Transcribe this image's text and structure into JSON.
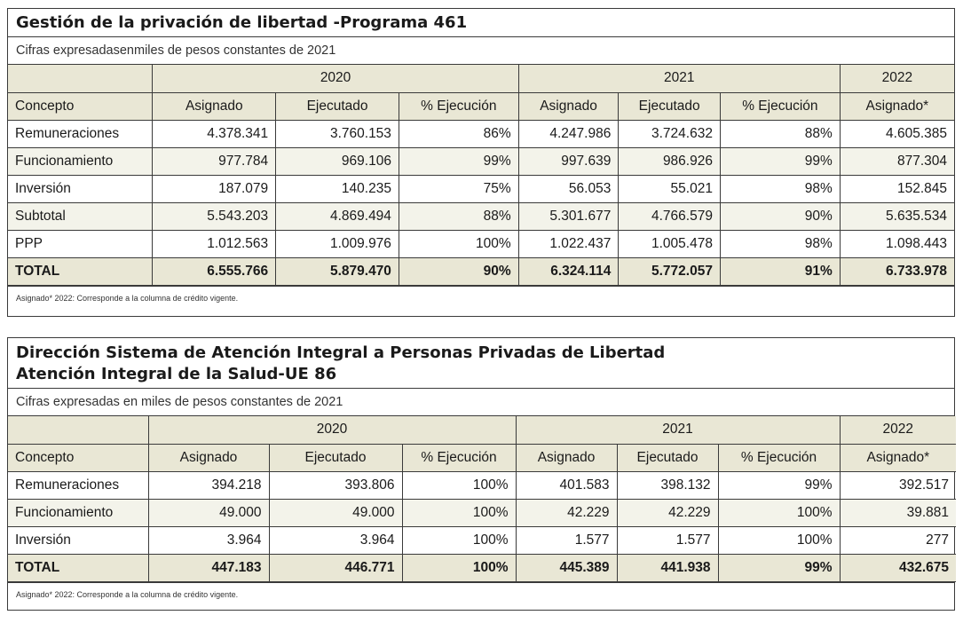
{
  "table1": {
    "title": "Gestión de la privación de libertad -Programa 461",
    "subtitle": "Cifras expresadasenmiles de pesos constantes de 2021",
    "years": [
      "2020",
      "2021",
      "2022"
    ],
    "columns": [
      "Concepto",
      "Asignado",
      "Ejecutado",
      "% Ejecución",
      "Asignado",
      "Ejecutado",
      "% Ejecución",
      "Asignado*"
    ],
    "rows": [
      {
        "label": "Remuneraciones",
        "values": [
          "4.378.341",
          "3.760.153",
          "86%",
          "4.247.986",
          "3.724.632",
          "88%",
          "4.605.385"
        ]
      },
      {
        "label": "Funcionamiento",
        "values": [
          "977.784",
          "969.106",
          "99%",
          "997.639",
          "986.926",
          "99%",
          "877.304"
        ]
      },
      {
        "label": "Inversión",
        "values": [
          "187.079",
          "140.235",
          "75%",
          "56.053",
          "55.021",
          "98%",
          "152.845"
        ]
      },
      {
        "label": "Subtotal",
        "values": [
          "5.543.203",
          "4.869.494",
          "88%",
          "5.301.677",
          "4.766.579",
          "90%",
          "5.635.534"
        ]
      },
      {
        "label": "PPP",
        "values": [
          "1.012.563",
          "1.009.976",
          "100%",
          "1.022.437",
          "1.005.478",
          "98%",
          "1.098.443"
        ]
      },
      {
        "label": "TOTAL",
        "values": [
          "6.555.766",
          "5.879.470",
          "90%",
          "6.324.114",
          "5.772.057",
          "91%",
          "6.733.978"
        ]
      }
    ],
    "note": "Asignado* 2022: Corresponde a la columna de crédito vigente."
  },
  "table2": {
    "title_line1": "Dirección Sistema de Atención Integral a Personas Privadas de Libertad",
    "title_line2": "Atención Integral de la Salud-UE 86",
    "subtitle": "Cifras expresadas en miles de pesos constantes de 2021",
    "years": [
      "2020",
      "2021",
      "2022"
    ],
    "columns": [
      "Concepto",
      "Asignado",
      "Ejecutado",
      "% Ejecución",
      "Asignado",
      "Ejecutado",
      "% Ejecución",
      "Asignado*"
    ],
    "rows": [
      {
        "label": "Remuneraciones",
        "values": [
          "394.218",
          "393.806",
          "100%",
          "401.583",
          "398.132",
          "99%",
          "392.517"
        ]
      },
      {
        "label": "Funcionamiento",
        "values": [
          "49.000",
          "49.000",
          "100%",
          "42.229",
          "42.229",
          "100%",
          "39.881"
        ]
      },
      {
        "label": "Inversión",
        "values": [
          "3.964",
          "3.964",
          "100%",
          "1.577",
          "1.577",
          "100%",
          "277"
        ]
      },
      {
        "label": "TOTAL",
        "values": [
          "447.183",
          "446.771",
          "100%",
          "445.389",
          "441.938",
          "99%",
          "432.675"
        ]
      }
    ],
    "note": "Asignado* 2022: Corresponde a la columna de crédito vigente."
  }
}
